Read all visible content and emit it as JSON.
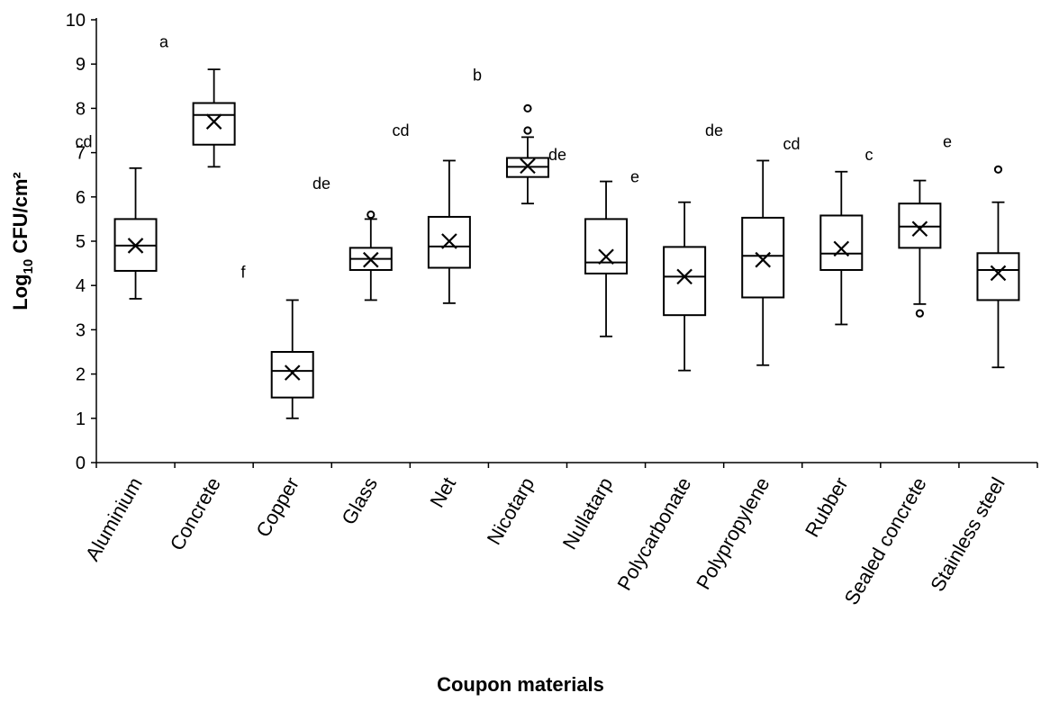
{
  "chart_data": {
    "type": "box",
    "xlabel": "Coupon materials",
    "ylabel_main": "Log",
    "ylabel_sub": "10",
    "ylabel_rest": " CFU/cm²",
    "ylim": [
      0,
      10
    ],
    "yticks": [
      0,
      1,
      2,
      3,
      4,
      5,
      6,
      7,
      8,
      9,
      10
    ],
    "grid": false,
    "categories": [
      "Aluminium",
      "Concrete",
      "Copper",
      "Glass",
      "Net",
      "Nicotarp",
      "Nullatarp",
      "Polycarbonate",
      "Polypropylene",
      "Rubber",
      "Sealed concrete",
      "Stainless steel"
    ],
    "boxes": [
      {
        "min": 3.7,
        "q1": 4.33,
        "median": 4.9,
        "q3": 5.5,
        "max": 6.65,
        "mean": 4.9,
        "outliers": []
      },
      {
        "min": 6.68,
        "q1": 7.18,
        "median": 7.85,
        "q3": 8.12,
        "max": 8.88,
        "mean": 7.7,
        "outliers": []
      },
      {
        "min": 1.0,
        "q1": 1.47,
        "median": 2.07,
        "q3": 2.5,
        "max": 3.67,
        "mean": 2.03,
        "outliers": []
      },
      {
        "min": 3.67,
        "q1": 4.35,
        "median": 4.6,
        "q3": 4.85,
        "max": 5.5,
        "mean": 4.58,
        "outliers": [
          5.6
        ]
      },
      {
        "min": 3.6,
        "q1": 4.4,
        "median": 4.88,
        "q3": 5.55,
        "max": 6.82,
        "mean": 5.0,
        "outliers": []
      },
      {
        "min": 5.85,
        "q1": 6.45,
        "median": 6.68,
        "q3": 6.88,
        "max": 7.35,
        "mean": 6.7,
        "outliers": [
          7.5,
          8.0
        ]
      },
      {
        "min": 2.85,
        "q1": 4.27,
        "median": 4.52,
        "q3": 5.5,
        "max": 6.35,
        "mean": 4.65,
        "outliers": []
      },
      {
        "min": 2.08,
        "q1": 3.33,
        "median": 4.2,
        "q3": 4.87,
        "max": 5.88,
        "mean": 4.2,
        "outliers": []
      },
      {
        "min": 2.2,
        "q1": 3.73,
        "median": 4.67,
        "q3": 5.53,
        "max": 6.82,
        "mean": 4.58,
        "outliers": []
      },
      {
        "min": 3.12,
        "q1": 4.35,
        "median": 4.72,
        "q3": 5.58,
        "max": 6.57,
        "mean": 4.83,
        "outliers": []
      },
      {
        "min": 3.58,
        "q1": 4.85,
        "median": 5.33,
        "q3": 5.85,
        "max": 6.37,
        "mean": 5.28,
        "outliers": [
          3.37
        ]
      },
      {
        "min": 2.15,
        "q1": 3.67,
        "median": 4.35,
        "q3": 4.73,
        "max": 5.88,
        "mean": 4.28,
        "outliers": [
          6.62
        ]
      }
    ],
    "significance_letters": [
      {
        "text": "cd",
        "y": 7.25
      },
      {
        "text": "a",
        "y": 9.5
      },
      {
        "text": "f",
        "y": 4.3
      },
      {
        "text": "de",
        "y": 6.3
      },
      {
        "text": "cd",
        "y": 7.5
      },
      {
        "text": "b",
        "y": 8.75
      },
      {
        "text": "de",
        "y": 6.95
      },
      {
        "text": "e",
        "y": 6.45
      },
      {
        "text": "de",
        "y": 7.5
      },
      {
        "text": "cd",
        "y": 7.2
      },
      {
        "text": "c",
        "y": 6.95
      },
      {
        "text": "e",
        "y": 7.25
      }
    ]
  }
}
